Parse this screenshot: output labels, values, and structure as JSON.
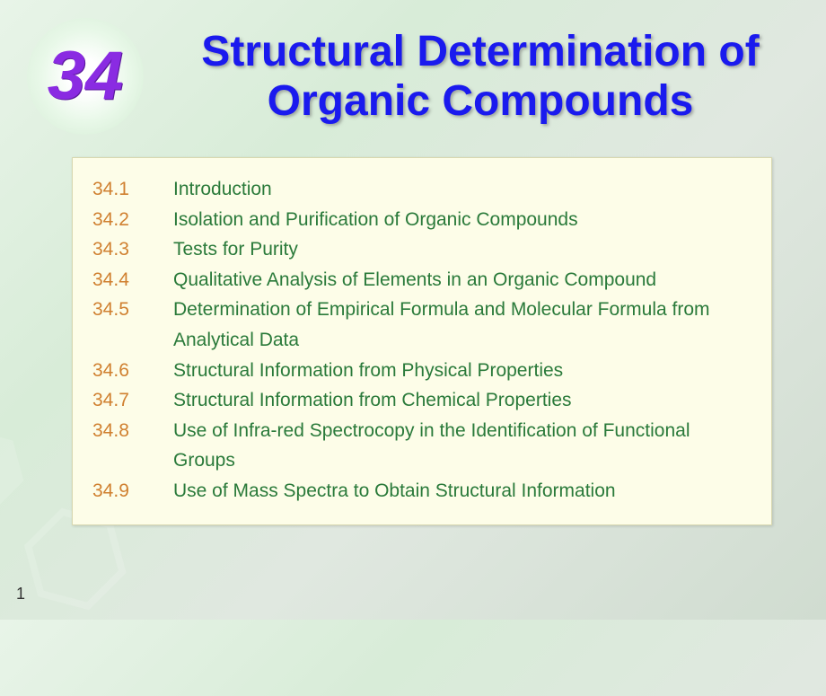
{
  "chapter_number": "34",
  "title": "Structural Determination of Organic Compounds",
  "page_number": "1",
  "colors": {
    "title_color": "#1a1aee",
    "chapter_num_color": "#8a2be2",
    "toc_num_color": "#d08030",
    "toc_text_color": "#2a7a3a",
    "content_bg": "#fdfde8"
  },
  "toc": [
    {
      "num": "34.1",
      "text": "Introduction"
    },
    {
      "num": "34.2",
      "text": "Isolation and Purification of Organic Compounds"
    },
    {
      "num": "34.3",
      "text": "Tests for Purity"
    },
    {
      "num": "34.4",
      "text": "Qualitative Analysis of Elements in an Organic Compound"
    },
    {
      "num": "34.5",
      "text": "Determination of Empirical Formula and Molecular Formula from Analytical Data"
    },
    {
      "num": "34.6",
      "text": "Structural Information from Physical Properties"
    },
    {
      "num": "34.7",
      "text": "Structural Information from Chemical Properties"
    },
    {
      "num": "34.8",
      "text": "Use of Infra-red Spectrocopy in the Identification of Functional Groups"
    },
    {
      "num": "34.9",
      "text": "Use of Mass Spectra to Obtain Structural Information"
    }
  ]
}
